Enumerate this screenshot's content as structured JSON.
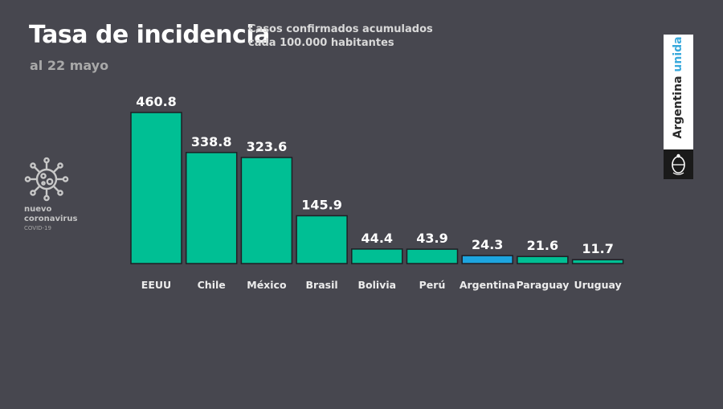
{
  "header": {
    "title": "Tasa de incidencia",
    "subtitle_line1": "Casos confirmados acumulados",
    "subtitle_line2": "cada 100.000 habitantes",
    "date": "al 22 mayo"
  },
  "logo": {
    "icon": "coronavirus-icon",
    "line1": "nuevo",
    "line2": "coronavirus",
    "line3": "COVID-19"
  },
  "brand": {
    "word1": "Argentina",
    "word2": "unida",
    "seal_icon": "coat-of-arms-icon"
  },
  "colors": {
    "background": "#47474f",
    "bar": "#00bf94",
    "highlight_bar": "#1da5e0",
    "bar_border": "#1f1f24",
    "text": "#ffffff",
    "category_text": "#ececec",
    "brand_accent": "#39a9dc"
  },
  "chart_data": {
    "type": "bar",
    "title": "Tasa de incidencia",
    "subtitle": "Casos confirmados acumulados cada 100.000 habitantes",
    "categories": [
      "EEUU",
      "Chile",
      "México",
      "Brasil",
      "Bolivia",
      "Perú",
      "Argentina",
      "Paraguay",
      "Uruguay"
    ],
    "values": [
      460.8,
      338.8,
      323.6,
      145.9,
      44.4,
      43.9,
      24.3,
      21.6,
      11.7
    ],
    "labels": [
      "460.8",
      "338.8",
      "323.6",
      "145.9",
      "44.4",
      "43.9",
      "24.3",
      "21.6",
      "11.7"
    ],
    "highlight": "Argentina",
    "ylim": [
      0,
      460.8
    ],
    "grid": false,
    "axis_visible": false,
    "legend": "none"
  }
}
